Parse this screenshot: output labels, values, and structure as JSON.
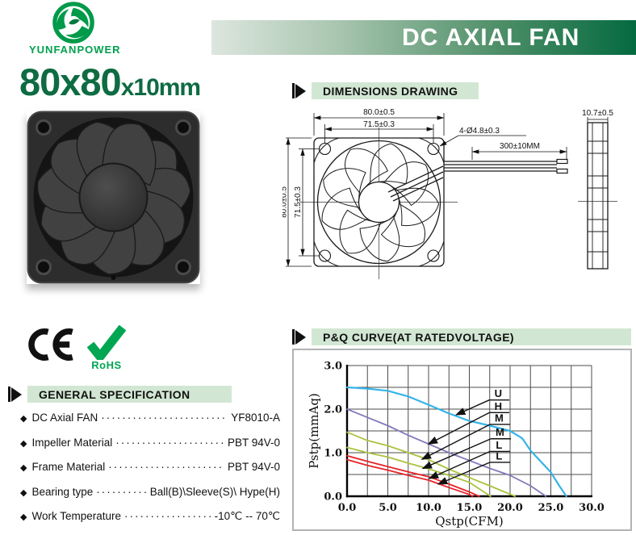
{
  "header": {
    "brand": "YUNFANPOWER",
    "banner_title": "DC AXIAL FAN"
  },
  "size_title": {
    "main": "80x80",
    "sub": "x10mm"
  },
  "certifications": {
    "rohs": "RoHS"
  },
  "sections": {
    "dimensions": {
      "title": "DIMENSIONS DRAWING"
    },
    "general": {
      "title": "GENERAL SPECIFICATION"
    },
    "pq": {
      "title": "P&Q CURVE(AT RATEDVOLTAGE)"
    }
  },
  "drawing": {
    "width_outer": "80.0±0.5",
    "width_inner": "71.5±0.3",
    "height_outer": "80.0±0.5",
    "height_inner": "71.5±0.3",
    "holes": "4-Ø4.8±0.3",
    "wire_length": "300±10MM",
    "thickness": "10.7±0.5"
  },
  "specs": {
    "bullet": "◆",
    "leader": "········································",
    "items": [
      {
        "name": "DC Axial FAN",
        "value": "YF8010-A"
      },
      {
        "name": "Impeller Material",
        "value": "PBT 94V-0"
      },
      {
        "name": "Frame Material",
        "value": "PBT 94V-0"
      },
      {
        "name": "Bearing type",
        "value": "Ball(B)\\Sleeve(S)\\ Hype(H)"
      },
      {
        "name": "Work Temperature",
        "value": "-10℃ -- 70℃"
      }
    ]
  },
  "chart_data": {
    "type": "line",
    "title": "P&Q CURVE(AT RATEDVOLTAGE)",
    "xlabel": "Qstp(CFM)",
    "ylabel": "Pstp(mmAq)",
    "xlim": [
      0,
      30
    ],
    "ylim": [
      0,
      3.0
    ],
    "xticks": [
      0,
      5,
      10,
      15,
      20,
      25,
      30
    ],
    "xtick_labels": [
      "0.0",
      "5.0",
      "10.0",
      "15.0",
      "20.0",
      "25.0",
      "30.0"
    ],
    "yticks": [
      0,
      1,
      2,
      3
    ],
    "ytick_labels": [
      "0.0",
      "1.0",
      "2.0",
      "3.0"
    ],
    "x_minor_step": 2.5,
    "y_grid_step": 0.5,
    "grid": true,
    "legend_position": "inline-labels",
    "series": [
      {
        "name": "U",
        "color": "#35b4e8",
        "points": [
          [
            0,
            2.5
          ],
          [
            2.5,
            2.47
          ],
          [
            5,
            2.42
          ],
          [
            7.5,
            2.29
          ],
          [
            10,
            2.1
          ],
          [
            12.5,
            1.9
          ],
          [
            15,
            1.73
          ],
          [
            17.5,
            1.62
          ],
          [
            20,
            1.5
          ],
          [
            21.5,
            1.33
          ],
          [
            22.5,
            1.05
          ],
          [
            23.5,
            0.85
          ],
          [
            25,
            0.55
          ],
          [
            26,
            0.25
          ],
          [
            26.9,
            0
          ]
        ],
        "label_pos": [
          18.0,
          2.33
        ],
        "arrow_to": [
          13.4,
          1.87
        ]
      },
      {
        "name": "H",
        "color": "#8678bb",
        "points": [
          [
            0,
            2.0
          ],
          [
            2.5,
            1.81
          ],
          [
            5,
            1.62
          ],
          [
            7.5,
            1.4
          ],
          [
            10,
            1.2
          ],
          [
            12.5,
            1.0
          ],
          [
            15,
            0.82
          ],
          [
            17.5,
            0.64
          ],
          [
            20,
            0.48
          ],
          [
            22.5,
            0.24
          ],
          [
            24.4,
            0
          ]
        ],
        "label_pos": [
          18.0,
          2.04
        ],
        "arrow_to": [
          10.0,
          1.2
        ]
      },
      {
        "name": "M",
        "color": "#a9c33e",
        "points": [
          [
            0,
            1.47
          ],
          [
            2.5,
            1.28
          ],
          [
            5,
            1.16
          ],
          [
            7.5,
            1.0
          ],
          [
            10,
            0.84
          ],
          [
            12.5,
            0.62
          ],
          [
            15,
            0.43
          ],
          [
            17.5,
            0.24
          ],
          [
            20.6,
            0
          ]
        ],
        "label_pos": [
          18.1,
          1.77
        ],
        "arrow_to": [
          9.2,
          0.85
        ]
      },
      {
        "name": "M",
        "color": "#a9c33e",
        "points": [
          [
            0,
            1.12
          ],
          [
            2.5,
            1.0
          ],
          [
            5,
            0.9
          ],
          [
            7.5,
            0.76
          ],
          [
            10,
            0.63
          ],
          [
            12.5,
            0.48
          ],
          [
            15,
            0.32
          ],
          [
            17.6,
            0
          ]
        ],
        "label_pos": [
          18.2,
          1.44
        ],
        "arrow_to": [
          9.3,
          0.64
        ]
      },
      {
        "name": "L",
        "color": "#e6232a",
        "points": [
          [
            0,
            0.93
          ],
          [
            2.5,
            0.8
          ],
          [
            5,
            0.68
          ],
          [
            7.5,
            0.56
          ],
          [
            10,
            0.45
          ],
          [
            12.5,
            0.28
          ],
          [
            15,
            0.1
          ],
          [
            16.2,
            0
          ]
        ],
        "label_pos": [
          18.1,
          1.15
        ],
        "arrow_to": [
          10.1,
          0.41
        ]
      },
      {
        "name": "L",
        "color": "#e6232a",
        "points": [
          [
            0,
            0.84
          ],
          [
            2.5,
            0.71
          ],
          [
            5,
            0.6
          ],
          [
            7.5,
            0.48
          ],
          [
            10,
            0.37
          ],
          [
            12.5,
            0.2
          ],
          [
            15,
            0.04
          ],
          [
            15.4,
            0
          ]
        ],
        "label_pos": [
          18.1,
          0.9
        ],
        "arrow_to": [
          11.2,
          0.28
        ]
      }
    ]
  }
}
